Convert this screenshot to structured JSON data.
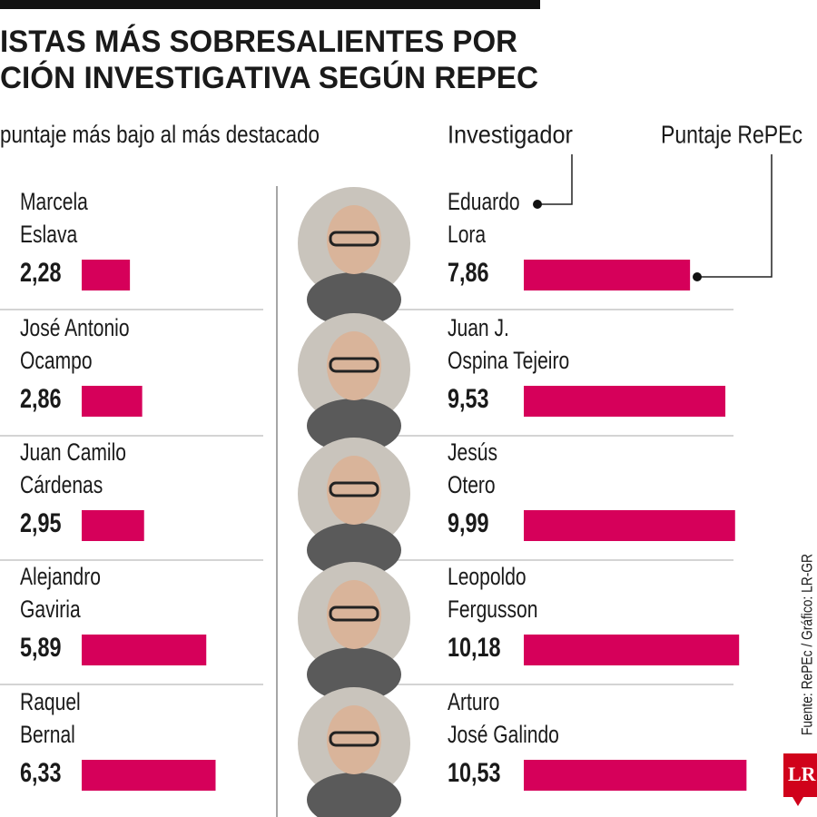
{
  "chart_data": {
    "type": "bar",
    "title": [
      "ISTAS MÁS SOBRESALIENTES POR",
      "CIÓN INVESTIGATIVA SEGÚN REPEC"
    ],
    "subtitle": "puntaje más bajo al más destacado",
    "legend": {
      "photo": "Investigador",
      "bar": "Puntaje RePEc"
    },
    "categories": [
      [
        "Marcela",
        "Eslava"
      ],
      [
        "José Antonio",
        "Ocampo"
      ],
      [
        "Juan Camilo",
        "Cárdenas"
      ],
      [
        "Alejandro",
        "Gaviria"
      ],
      [
        "Raquel",
        "Bernal"
      ],
      [
        "Eduardo",
        "Lora"
      ],
      [
        "Juan J.",
        "Ospina Tejeiro"
      ],
      [
        "Jesús",
        "Otero"
      ],
      [
        "Leopoldo",
        "Fergusson"
      ],
      [
        "Arturo",
        "José Galindo"
      ]
    ],
    "values": [
      2.28,
      2.86,
      2.95,
      5.89,
      6.33,
      7.86,
      9.53,
      9.99,
      10.18,
      10.53
    ],
    "value_labels": [
      "2,28",
      "2,86",
      "2,95",
      "5,89",
      "6,33",
      "7,86",
      "9,53",
      "9,99",
      "10,18",
      "10,53"
    ],
    "color": "#d6005a",
    "source": "Fuente: RePEc / Gráfico: LR-GR",
    "logo": "LR"
  }
}
